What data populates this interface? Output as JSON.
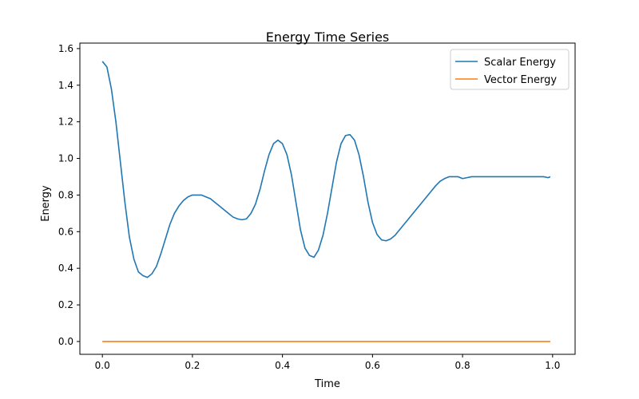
{
  "chart_data": {
    "type": "line",
    "title": "Energy Time Series",
    "xlabel": "Time",
    "ylabel": "Energy",
    "xlim": [
      -0.05,
      1.05
    ],
    "ylim": [
      -0.07,
      1.63
    ],
    "xticks": [
      0.0,
      0.2,
      0.4,
      0.6,
      0.8,
      1.0
    ],
    "xtick_labels": [
      "0.0",
      "0.2",
      "0.4",
      "0.6",
      "0.8",
      "1.0"
    ],
    "yticks": [
      0.0,
      0.2,
      0.4,
      0.6,
      0.8,
      1.0,
      1.2,
      1.4,
      1.6
    ],
    "ytick_labels": [
      "0.0",
      "0.2",
      "0.4",
      "0.6",
      "0.8",
      "1.0",
      "1.2",
      "1.4",
      "1.6"
    ],
    "grid": false,
    "legend_position": "top-right",
    "series": [
      {
        "name": "Scalar Energy",
        "color": "#1f77b4",
        "x": [
          0.0,
          0.01,
          0.02,
          0.03,
          0.04,
          0.05,
          0.06,
          0.07,
          0.08,
          0.09,
          0.1,
          0.11,
          0.12,
          0.13,
          0.14,
          0.15,
          0.16,
          0.17,
          0.18,
          0.19,
          0.2,
          0.21,
          0.22,
          0.23,
          0.24,
          0.25,
          0.26,
          0.27,
          0.28,
          0.29,
          0.3,
          0.31,
          0.32,
          0.33,
          0.34,
          0.35,
          0.36,
          0.37,
          0.38,
          0.39,
          0.4,
          0.41,
          0.42,
          0.43,
          0.44,
          0.45,
          0.46,
          0.47,
          0.48,
          0.49,
          0.5,
          0.51,
          0.52,
          0.53,
          0.54,
          0.55,
          0.56,
          0.57,
          0.58,
          0.59,
          0.6,
          0.61,
          0.62,
          0.63,
          0.64,
          0.65,
          0.66,
          0.67,
          0.68,
          0.69,
          0.7,
          0.71,
          0.72,
          0.73,
          0.74,
          0.75,
          0.76,
          0.77,
          0.78,
          0.79,
          0.8,
          0.81,
          0.82,
          0.83,
          0.84,
          0.85,
          0.86,
          0.87,
          0.88,
          0.89,
          0.9,
          0.91,
          0.92,
          0.93,
          0.94,
          0.95,
          0.96,
          0.97,
          0.98,
          0.99,
          0.995
        ],
        "y": [
          1.53,
          1.5,
          1.38,
          1.2,
          0.98,
          0.76,
          0.57,
          0.45,
          0.38,
          0.36,
          0.35,
          0.37,
          0.41,
          0.48,
          0.56,
          0.64,
          0.7,
          0.74,
          0.77,
          0.79,
          0.8,
          0.8,
          0.8,
          0.79,
          0.78,
          0.76,
          0.74,
          0.72,
          0.7,
          0.68,
          0.67,
          0.665,
          0.67,
          0.7,
          0.75,
          0.83,
          0.93,
          1.02,
          1.08,
          1.1,
          1.08,
          1.02,
          0.91,
          0.76,
          0.61,
          0.51,
          0.47,
          0.46,
          0.5,
          0.58,
          0.7,
          0.84,
          0.98,
          1.08,
          1.125,
          1.13,
          1.1,
          1.02,
          0.9,
          0.76,
          0.65,
          0.585,
          0.555,
          0.55,
          0.56,
          0.58,
          0.61,
          0.64,
          0.67,
          0.7,
          0.73,
          0.76,
          0.79,
          0.82,
          0.85,
          0.875,
          0.89,
          0.9,
          0.9,
          0.9,
          0.89,
          0.895,
          0.9,
          0.9,
          0.9,
          0.9,
          0.9,
          0.9,
          0.9,
          0.9,
          0.9,
          0.9,
          0.9,
          0.9,
          0.9,
          0.9,
          0.9,
          0.9,
          0.9,
          0.895,
          0.9
        ]
      },
      {
        "name": "Vector Energy",
        "color": "#ff7f0e",
        "x": [
          0.0,
          0.995
        ],
        "y": [
          0.0,
          0.0
        ]
      }
    ]
  }
}
